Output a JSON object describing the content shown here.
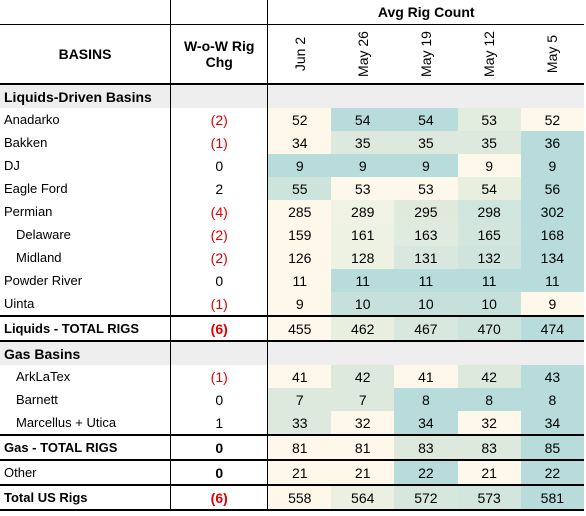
{
  "header": {
    "basins": "BASINS",
    "wow_line1": "W-o-W Rig",
    "wow_line2": "Chg",
    "avg_title": "Avg Rig Count",
    "dates": [
      "Jun 2",
      "May 26",
      "May 19",
      "May 12",
      "May 5"
    ]
  },
  "rows": [
    {
      "kind": "section",
      "label": "Liquids-Driven Basins"
    },
    {
      "kind": "data",
      "label": "Anadarko",
      "wow": "(2)",
      "neg": true,
      "values": [
        "52",
        "54",
        "54",
        "53",
        "52"
      ],
      "fills": [
        "#fef8ea",
        "#b7dcdb",
        "#b7dcdb",
        "#e2eddf",
        "#fef8ea"
      ]
    },
    {
      "kind": "data",
      "label": "Bakken",
      "wow": "(1)",
      "neg": true,
      "values": [
        "34",
        "35",
        "35",
        "35",
        "36"
      ],
      "fills": [
        "#fef8ea",
        "#dce9dc",
        "#dce9dc",
        "#dce9dc",
        "#b7dcdb"
      ]
    },
    {
      "kind": "data",
      "label": "DJ",
      "wow": "0",
      "neg": false,
      "values": [
        "9",
        "9",
        "9",
        "9",
        "9"
      ],
      "fills": [
        "#b7dcdb",
        "#b7dcdb",
        "#b7dcdb",
        "#fef8ea",
        "#b7dcdb"
      ]
    },
    {
      "kind": "data",
      "label": "Eagle Ford",
      "wow": "2",
      "neg": false,
      "values": [
        "55",
        "53",
        "53",
        "54",
        "56"
      ],
      "fills": [
        "#cde4dd",
        "#fef8ea",
        "#fef8ea",
        "#e8efdf",
        "#b7dcdb"
      ]
    },
    {
      "kind": "data",
      "label": "Permian",
      "wow": "(4)",
      "neg": true,
      "values": [
        "285",
        "289",
        "295",
        "298",
        "302"
      ],
      "fills": [
        "#fef8ea",
        "#f0f2e4",
        "#dfeadd",
        "#d0e5dd",
        "#b7dcdb"
      ]
    },
    {
      "kind": "data",
      "label": "Delaware",
      "indent": true,
      "wow": "(2)",
      "neg": true,
      "values": [
        "159",
        "161",
        "163",
        "165",
        "168"
      ],
      "fills": [
        "#fef8ea",
        "#eef2e3",
        "#e0ebdf",
        "#d2e6dd",
        "#b7dcdb"
      ]
    },
    {
      "kind": "data",
      "label": "Midland",
      "indent": true,
      "wow": "(2)",
      "neg": true,
      "values": [
        "126",
        "128",
        "131",
        "132",
        "134"
      ],
      "fills": [
        "#fef8ea",
        "#eef2e3",
        "#d8e8de",
        "#cfe4dd",
        "#b7dcdb"
      ]
    },
    {
      "kind": "data",
      "label": "Powder River",
      "wow": "0",
      "neg": false,
      "values": [
        "11",
        "11",
        "11",
        "11",
        "11"
      ],
      "fills": [
        "#fef8ea",
        "#b7dcdb",
        "#b7dcdb",
        "#b7dcdb",
        "#b7dcdb"
      ]
    },
    {
      "kind": "data",
      "label": "Uinta",
      "wow": "(1)",
      "neg": true,
      "values": [
        "9",
        "10",
        "10",
        "10",
        "9"
      ],
      "fills": [
        "#fef8ea",
        "#c6e1dc",
        "#c6e1dc",
        "#c6e1dc",
        "#fef8ea"
      ]
    },
    {
      "kind": "total",
      "label": "Liquids - TOTAL RIGS",
      "wow": "(6)",
      "neg": true,
      "values": [
        "455",
        "462",
        "467",
        "470",
        "474"
      ],
      "fills": [
        "#fef8ea",
        "#e8efdf",
        "#d8e8de",
        "#cde4dd",
        "#b7dcdb"
      ]
    },
    {
      "kind": "section",
      "label": "Gas Basins"
    },
    {
      "kind": "data",
      "label": "ArkLaTex",
      "indent": true,
      "wow": "(1)",
      "neg": true,
      "values": [
        "41",
        "42",
        "41",
        "42",
        "43"
      ],
      "fills": [
        "#fef8ea",
        "#dce9dc",
        "#fef8ea",
        "#dce9dc",
        "#b7dcdb"
      ]
    },
    {
      "kind": "data",
      "label": "Barnett",
      "indent": true,
      "wow": "0",
      "neg": false,
      "values": [
        "7",
        "7",
        "8",
        "8",
        "8"
      ],
      "fills": [
        "#dce9dc",
        "#dce9dc",
        "#b7dcdb",
        "#b7dcdb",
        "#b7dcdb"
      ]
    },
    {
      "kind": "data",
      "label": "Marcellus + Utica",
      "indent": true,
      "wow": "1",
      "neg": false,
      "values": [
        "33",
        "32",
        "34",
        "32",
        "34"
      ],
      "fills": [
        "#dce9dc",
        "#fef8ea",
        "#b7dcdb",
        "#fef8ea",
        "#b7dcdb"
      ]
    },
    {
      "kind": "total",
      "label": "Gas - TOTAL RIGS",
      "wow": "0",
      "neg": false,
      "values": [
        "81",
        "81",
        "83",
        "83",
        "85"
      ],
      "fills": [
        "#fef8ea",
        "#fef8ea",
        "#dce9dc",
        "#dce9dc",
        "#b7dcdb"
      ]
    },
    {
      "kind": "data",
      "label": "Other",
      "wow": "0",
      "neg": false,
      "boldwow": true,
      "values": [
        "21",
        "21",
        "22",
        "21",
        "22"
      ],
      "fills": [
        "#fef8ea",
        "#fef8ea",
        "#b7dcdb",
        "#fef8ea",
        "#b7dcdb"
      ]
    },
    {
      "kind": "total",
      "label": "Total US Rigs",
      "wow": "(6)",
      "neg": true,
      "values": [
        "558",
        "564",
        "572",
        "573",
        "581"
      ],
      "fills": [
        "#fef8ea",
        "#ebf0e1",
        "#d6e7de",
        "#d2e6dd",
        "#b7dcdb"
      ]
    }
  ]
}
